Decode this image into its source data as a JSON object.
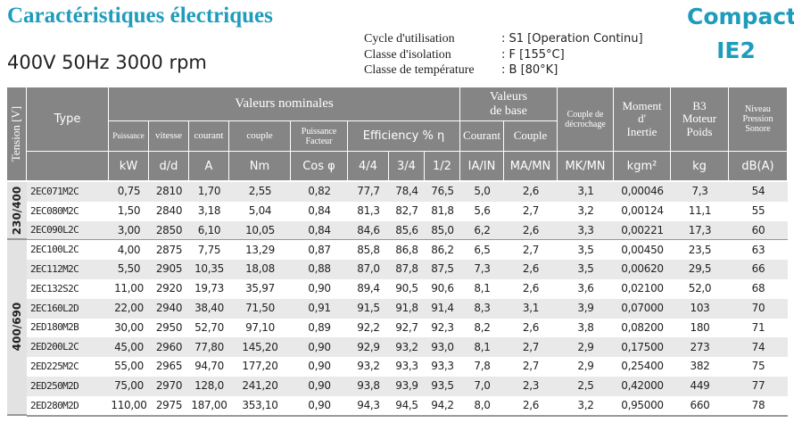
{
  "header": {
    "title": "Caractéristiques électriques",
    "subtitle": "400V 50Hz 3000 rpm",
    "conditions": [
      {
        "label": "Cycle d'utilisation",
        "value": ": S1 [Operation Continu]"
      },
      {
        "label": "Classe d'isolation",
        "value": ": F [155°C]"
      },
      {
        "label": "Classe de température",
        "value": ": B [80°K]"
      }
    ],
    "brand": [
      "Compact",
      "IE2"
    ]
  },
  "table": {
    "headers": {
      "tension": "Tension [V]",
      "type": "Type",
      "valeurs_nominales": "Valeurs nominales",
      "puissance": "Puissance",
      "vitesse": "vitesse",
      "courant": "courant",
      "couple": "couple",
      "puissance_facteur": "Puissance\nFacteur",
      "efficiency": "Efficiency % η",
      "valeurs_de_base": "Valeurs\nde base",
      "courant_base": "Courant",
      "couple_base": "Couple",
      "couple_decrochage": "Couple de\ndécrochage",
      "moment": "Moment\nd'\nInertie",
      "b3": "B3\nMoteur\nPoids",
      "niveau": "Niveau\nPression\nSonore"
    },
    "units": [
      "kW",
      "d/d",
      "A",
      "Nm",
      "Cos φ",
      "4/4",
      "3/4",
      "1/2",
      "IA/IN",
      "MA/MN",
      "MK/MN",
      "kgm²",
      "kg",
      "dB(A)"
    ],
    "groups": [
      {
        "tension": "230/400",
        "rows": [
          [
            "2EC071M2C",
            "0,75",
            "2810",
            "1,70",
            "2,55",
            "0,82",
            "77,7",
            "78,4",
            "76,5",
            "5,0",
            "2,6",
            "3,1",
            "0,00046",
            "7,3",
            "54"
          ],
          [
            "2EC080M2C",
            "1,50",
            "2840",
            "3,18",
            "5,04",
            "0,84",
            "81,3",
            "82,7",
            "81,8",
            "5,6",
            "2,7",
            "3,2",
            "0,00124",
            "11,1",
            "55"
          ],
          [
            "2EC090L2C",
            "3,00",
            "2850",
            "6,10",
            "10,05",
            "0,84",
            "84,6",
            "85,6",
            "85,0",
            "6,2",
            "2,6",
            "3,3",
            "0,00221",
            "17,3",
            "60"
          ]
        ]
      },
      {
        "tension": "400/690",
        "rows": [
          [
            "2EC100L2C",
            "4,00",
            "2875",
            "7,75",
            "13,29",
            "0,87",
            "85,8",
            "86,8",
            "86,2",
            "6,5",
            "2,7",
            "3,5",
            "0,00450",
            "23,5",
            "63"
          ],
          [
            "2EC112M2C",
            "5,50",
            "2905",
            "10,35",
            "18,08",
            "0,88",
            "87,0",
            "87,8",
            "87,5",
            "7,3",
            "2,6",
            "3,5",
            "0,00620",
            "29,5",
            "66"
          ],
          [
            "2EC132S2C",
            "11,00",
            "2920",
            "19,73",
            "35,97",
            "0,90",
            "89,4",
            "90,5",
            "90,6",
            "8,1",
            "2,6",
            "3,6",
            "0,02100",
            "52,0",
            "68"
          ],
          [
            "2EC160L2D",
            "22,00",
            "2940",
            "38,40",
            "71,50",
            "0,91",
            "91,5",
            "91,8",
            "91,4",
            "8,3",
            "3,1",
            "3,9",
            "0,07000",
            "103",
            "70"
          ],
          [
            "2ED180M2B",
            "30,00",
            "2950",
            "52,70",
            "97,10",
            "0,89",
            "92,2",
            "92,7",
            "92,3",
            "8,2",
            "2,6",
            "3,8",
            "0,08200",
            "180",
            "71"
          ],
          [
            "2ED200L2C",
            "45,00",
            "2960",
            "77,80",
            "145,20",
            "0,90",
            "92,9",
            "93,2",
            "93,0",
            "8,1",
            "2,7",
            "2,9",
            "0,17500",
            "273",
            "74"
          ],
          [
            "2ED225M2C",
            "55,00",
            "2965",
            "94,70",
            "177,20",
            "0,90",
            "93,2",
            "93,3",
            "93,3",
            "7,8",
            "2,7",
            "2,9",
            "0,25400",
            "382",
            "75"
          ],
          [
            "2ED250M2D",
            "75,00",
            "2970",
            "128,0",
            "241,20",
            "0,90",
            "93,8",
            "93,9",
            "93,5",
            "7,0",
            "2,3",
            "2,5",
            "0,42000",
            "449",
            "77"
          ],
          [
            "2ED280M2D",
            "110,00",
            "2975",
            "187,00",
            "353,10",
            "0,90",
            "94,3",
            "94,5",
            "94,2",
            "8,0",
            "2,6",
            "3,2",
            "0,95000",
            "660",
            "78"
          ]
        ]
      }
    ]
  }
}
